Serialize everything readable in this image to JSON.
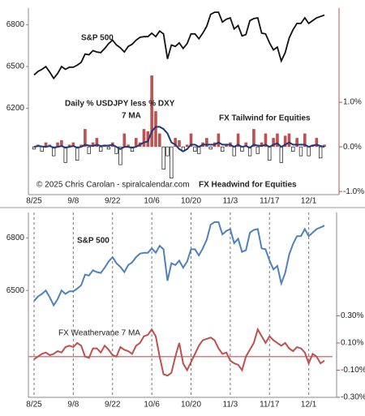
{
  "chart_data": [
    {
      "type": "combo",
      "categories": [
        "8/25",
        null,
        null,
        null,
        null,
        null,
        null,
        null,
        null,
        null,
        "9/8",
        null,
        null,
        null,
        null,
        null,
        null,
        null,
        null,
        null,
        "9/22",
        null,
        null,
        null,
        null,
        null,
        null,
        null,
        null,
        null,
        "10/6",
        null,
        null,
        null,
        null,
        null,
        null,
        null,
        null,
        null,
        "10/20",
        null,
        null,
        null,
        null,
        null,
        null,
        null,
        null,
        null,
        "11/3",
        null,
        null,
        null,
        null,
        null,
        null,
        null,
        null,
        null,
        "11/17",
        null,
        null,
        null,
        null,
        null,
        null,
        null,
        null,
        null,
        "12/1",
        null,
        null,
        null,
        null
      ],
      "ylim": [
        5580,
        6920
      ],
      "yticks": [
        6200,
        6500,
        6800
      ],
      "y2lim": [
        -1.07,
        3.11
      ],
      "y2ticks": [
        {
          "value": -1,
          "label": "-1.0%"
        },
        {
          "value": 0,
          "label": "0.0%"
        },
        {
          "value": 1,
          "label": "1.0%"
        }
      ],
      "series": [
        {
          "name": "S&P 500",
          "type": "line",
          "color": "#111111",
          "axis": "y",
          "values": [
            6440,
            6465,
            6480,
            6500,
            6460,
            6415,
            6450,
            6500,
            6480,
            6495,
            6495,
            6510,
            6530,
            6590,
            6585,
            6615,
            6605,
            6600,
            6630,
            6665,
            6690,
            6655,
            6635,
            6605,
            6645,
            6660,
            6690,
            6710,
            6715,
            6715,
            6740,
            6715,
            6755,
            6735,
            6555,
            6655,
            6645,
            6670,
            6630,
            6665,
            6735,
            6735,
            6700,
            6740,
            6790,
            6875,
            6890,
            6890,
            6820,
            6840,
            6850,
            6770,
            6795,
            6720,
            6730,
            6830,
            6845,
            6850,
            6740,
            6735,
            6670,
            6620,
            6640,
            6540,
            6600,
            6705,
            6765,
            6810,
            6810,
            6850,
            6810,
            6830,
            6850,
            6860,
            6870
          ]
        },
        {
          "name": "Daily % USDJPY less % DXY",
          "type": "bar",
          "color": "#c0504d",
          "negative_color": "#ffffff",
          "axis": "y2",
          "values": [
            -0.05,
            0.05,
            -0.1,
            0.1,
            0.05,
            -0.2,
            0.1,
            0.15,
            -0.35,
            0.05,
            0.1,
            -0.3,
            0.05,
            0.4,
            -0.15,
            0.1,
            0.2,
            -0.1,
            0.05,
            -0.05,
            0.1,
            -0.15,
            -0.4,
            0.3,
            0.05,
            -0.1,
            0.2,
            0.1,
            0.4,
            0.35,
            1.6,
            0.8,
            0.3,
            -0.5,
            -0.2,
            -0.7,
            0.2,
            0.15,
            -0.1,
            0.05,
            0.3,
            -0.1,
            -0.15,
            0.1,
            0.2,
            -0.05,
            0.1,
            0.3,
            -0.1,
            0.05,
            0.1,
            -0.2,
            0.3,
            -0.1,
            0.1,
            -0.2,
            0.4,
            -0.15,
            0.1,
            0.3,
            -0.3,
            0.2,
            0.3,
            -0.35,
            0.25,
            0.3,
            -0.1,
            0.2,
            -0.2,
            0.3,
            -0.2,
            0.05,
            0.2,
            -0.25,
            0.05
          ]
        },
        {
          "name": "7 MA",
          "type": "line",
          "color": "#1f3a7a",
          "axis": "y2",
          "values": [
            0,
            0.02,
            0.01,
            0,
            0.02,
            -0.02,
            0,
            0.02,
            -0.02,
            0,
            0.02,
            -0.02,
            0,
            0.05,
            0.03,
            0.02,
            0.05,
            0.02,
            0.03,
            0.03,
            0.05,
            0,
            -0.05,
            0,
            0,
            -0.02,
            0,
            0.05,
            0.1,
            0.12,
            0.35,
            0.45,
            0.45,
            0.4,
            0.3,
            0.1,
            0.05,
            -0.05,
            -0.1,
            -0.05,
            0.05,
            0.05,
            0,
            0.05,
            0.05,
            0.05,
            0.05,
            0.1,
            0.05,
            0.05,
            0.05,
            0,
            0.05,
            0,
            0.02,
            -0.02,
            0.05,
            0.03,
            0.02,
            0.05,
            0,
            0.05,
            0.08,
            0,
            0.05,
            0.1,
            0.05,
            0.05,
            0.05,
            0.05,
            0,
            0.03,
            0.05,
            0.02,
            0
          ]
        }
      ],
      "annotations": [
        "FX Tailwind for Equities",
        "FX Headwind for Equities",
        "© 2025 Chris Carolan - spiralcalendar.com"
      ],
      "vgrid": false
    },
    {
      "type": "combo",
      "categories": [
        "8/25",
        null,
        null,
        null,
        null,
        null,
        null,
        null,
        null,
        null,
        "9/8",
        null,
        null,
        null,
        null,
        null,
        null,
        null,
        null,
        null,
        "9/22",
        null,
        null,
        null,
        null,
        null,
        null,
        null,
        null,
        null,
        "10/6",
        null,
        null,
        null,
        null,
        null,
        null,
        null,
        null,
        null,
        "10/20",
        null,
        null,
        null,
        null,
        null,
        null,
        null,
        null,
        null,
        "11/3",
        null,
        null,
        null,
        null,
        null,
        null,
        null,
        null,
        null,
        "11/17",
        null,
        null,
        null,
        null,
        null,
        null,
        null,
        null,
        null,
        "12/1",
        null,
        null,
        null,
        null
      ],
      "ylim": [
        5890,
        6945
      ],
      "yticks": [
        6500,
        6800
      ],
      "y2lim": [
        -0.3,
        1.06
      ],
      "y2ticks": [
        {
          "value": 0.3,
          "label": "0.30%"
        },
        {
          "value": 0.1,
          "label": "0.10%"
        },
        {
          "value": -0.1,
          "label": "-0.10%"
        },
        {
          "value": -0.3,
          "label": "-0.30%"
        }
      ],
      "series": [
        {
          "name": "S&P 500",
          "type": "line",
          "color": "#4f81bd",
          "axis": "y",
          "values": [
            6440,
            6465,
            6480,
            6500,
            6460,
            6415,
            6450,
            6500,
            6480,
            6495,
            6495,
            6510,
            6530,
            6590,
            6585,
            6615,
            6605,
            6600,
            6630,
            6665,
            6690,
            6655,
            6635,
            6605,
            6645,
            6660,
            6690,
            6710,
            6715,
            6715,
            6740,
            6715,
            6755,
            6735,
            6555,
            6655,
            6645,
            6670,
            6630,
            6665,
            6735,
            6735,
            6700,
            6740,
            6790,
            6875,
            6890,
            6890,
            6820,
            6840,
            6850,
            6770,
            6795,
            6720,
            6730,
            6830,
            6845,
            6850,
            6740,
            6735,
            6670,
            6620,
            6640,
            6540,
            6600,
            6705,
            6765,
            6810,
            6810,
            6850,
            6810,
            6830,
            6850,
            6860,
            6870
          ]
        },
        {
          "name": "FX Weathervane 7 MA",
          "type": "line",
          "color": "#c0504d",
          "axis": "y2",
          "values": [
            -0.02,
            0,
            0.02,
            0.03,
            0.01,
            0.02,
            0.04,
            0.03,
            0.07,
            0.08,
            0.07,
            0.1,
            0.08,
            0,
            -0.01,
            0.06,
            0.06,
            0.03,
            0.08,
            0.05,
            0.01,
            0,
            0.07,
            0.05,
            0.04,
            0.02,
            0.08,
            0.1,
            0.15,
            0.16,
            0.2,
            0.15,
            0,
            -0.13,
            -0.14,
            -0.12,
            0,
            0.1,
            -0.05,
            -0.1,
            -0.04,
            0.02,
            0.08,
            0.12,
            0.13,
            0.14,
            0.12,
            0.06,
            0.02,
            0.03,
            -0.03,
            -0.05,
            -0.06,
            -0.1,
            0,
            0.05,
            0.1,
            0.2,
            0.15,
            0.1,
            0.15,
            0.12,
            0.1,
            0.08,
            0.1,
            0.06,
            0.04,
            0.07,
            0.06,
            0.03,
            -0.05,
            0.02,
            0,
            -0.05,
            -0.03
          ]
        }
      ],
      "annotations": [],
      "vgrid": true
    }
  ]
}
